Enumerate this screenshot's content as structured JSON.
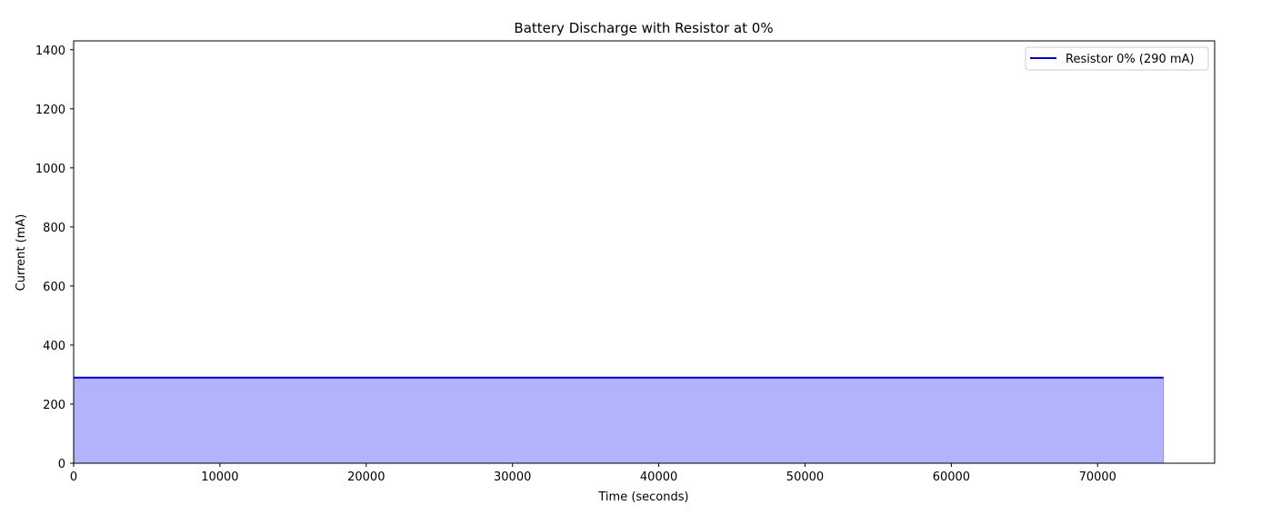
{
  "chart_data": {
    "type": "area",
    "title": "Battery Discharge with Resistor at 0%",
    "xlabel": "Time (seconds)",
    "ylabel": "Current (mA)",
    "xlim": [
      0,
      78000
    ],
    "ylim": [
      0,
      1430
    ],
    "xticks": [
      0,
      10000,
      20000,
      30000,
      40000,
      50000,
      60000,
      70000
    ],
    "yticks": [
      0,
      200,
      400,
      600,
      800,
      1000,
      1200,
      1400
    ],
    "grid": false,
    "legend_placement": "top-right",
    "series": [
      {
        "name": "Resistor 0% (290 mA)",
        "x": [
          0,
          74500
        ],
        "y": [
          290,
          290
        ],
        "line_color": "#0000cc",
        "fill_color": "#b3b3fd"
      }
    ]
  }
}
